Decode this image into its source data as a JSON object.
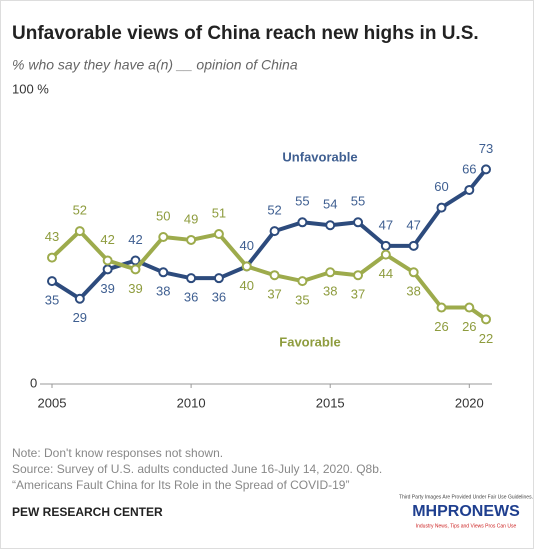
{
  "chart_data": {
    "type": "line",
    "title": "Unfavorable views of China reach new highs in U.S.",
    "subtitle": "% who say they have a(n) __ opinion of China",
    "x": [
      2005,
      2006,
      2007,
      2008,
      2009,
      2010,
      2011,
      2012,
      2013,
      2014,
      2015,
      2016,
      2017,
      2018,
      2019,
      2020,
      2020.6
    ],
    "series": [
      {
        "name": "Unfavorable",
        "color": "#2d4b7d",
        "label_color": "#3f5f91",
        "values": [
          35,
          29,
          39,
          42,
          38,
          36,
          36,
          40,
          52,
          55,
          54,
          55,
          47,
          47,
          60,
          66,
          73
        ]
      },
      {
        "name": "Favorable",
        "color": "#9dab4c",
        "label_color": "#8e9c3e",
        "values": [
          43,
          52,
          42,
          39,
          50,
          49,
          51,
          40,
          37,
          35,
          38,
          37,
          44,
          38,
          26,
          26,
          22
        ]
      }
    ],
    "xlim": [
      2005,
      2020.6
    ],
    "xticks": [
      2005,
      2010,
      2015,
      2020
    ],
    "ylim": [
      0,
      100
    ],
    "yticks": [
      0,
      {
        "value": 100,
        "label": "100 %"
      }
    ],
    "notes": [
      "Note: Don't know responses not shown.",
      "Source: Survey of U.S. adults conducted June 16-July 14, 2020. Q8b.",
      "“Americans Fault China for Its Role in the Spread of COVID-19”"
    ],
    "source_org": "PEW RESEARCH CENTER"
  },
  "watermark": {
    "caption": "Third Party Images Are Provided Under Fair Use Guidelines.",
    "logo": "MHPRONEWS",
    "tagline": "Industry News, Tips and Views Pros Can Use"
  }
}
